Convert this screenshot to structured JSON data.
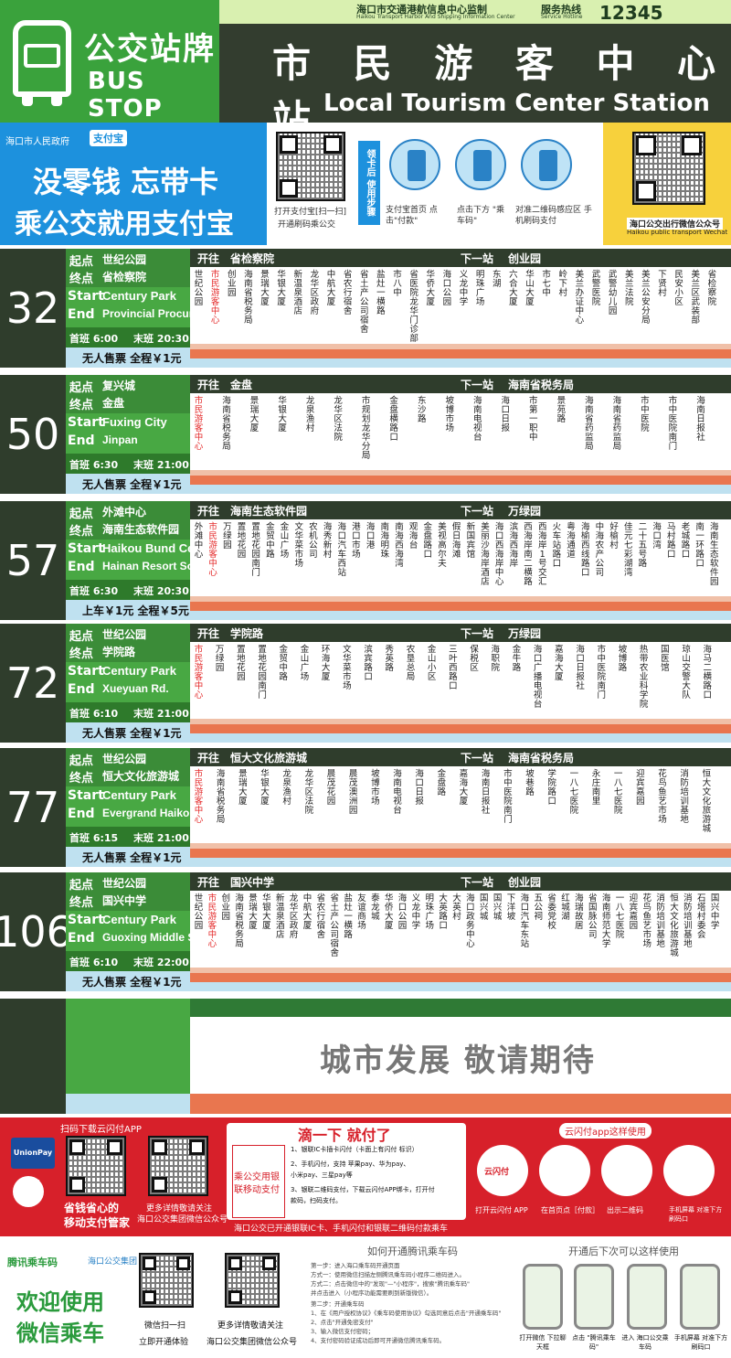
{
  "header": {
    "cn_title": "公交站牌",
    "en_title": "BUS STOP",
    "monitor_cn": "海口市交通港航信息中心监制",
    "monitor_en": "Haikou Transport Harbor And Shipping Information Center",
    "hotline_cn": "服务热线",
    "hotline_en": "Service Hotline",
    "hotline_num": "12345",
    "station_cn": "市 民 游 客 中 心 站",
    "station_en": "Local Tourism Center Station"
  },
  "ad_alipay": {
    "gov": "海口市人民政府",
    "brand": "支付宝",
    "line1": "没零钱  忘带卡",
    "line2": "乘公交就用支付宝",
    "qr_caption1": "打开支付宝[扫一扫]",
    "qr_caption2": "开通刷码乘公交",
    "steps_label": "领卡后 使用步骤",
    "step1": "支付宝首页 点击\"付款\"",
    "step2": "点击下方 \"乘车码\"",
    "step3": "对准二维码感应区 手机刷码支付",
    "wechat_caption": "海口公交出行微信公众号",
    "wechat_caption_en": "Haikou public transport Wechat"
  },
  "routes": [
    {
      "num": "32",
      "start_label": "起点",
      "start": "世纪公园",
      "end_label": "终点",
      "end": "省检察院",
      "start_en_label": "Start",
      "start_en": "Century Park",
      "end_en_label": "End",
      "end_en": "Provincial Procuratorate",
      "first": "首班 6:00",
      "last": "末班 20:30",
      "price": "无人售票 全程￥1元",
      "toward_label": "开往",
      "toward": "省检察院",
      "next_label": "下一站",
      "next": "创业园",
      "stops": [
        "世纪公园",
        "市民游客中心",
        "创业园",
        "海南省税务局",
        "景瑞大厦",
        "华银大厦",
        "新温泉酒店",
        "龙华区政府",
        "中航大厦",
        "省农行宿舍",
        "省土产公司宿舍",
        "盐灶一横路",
        "市八中",
        "省医院龙华门诊部",
        "华侨大厦",
        "海口公园",
        "义龙中学",
        "明珠广场",
        "东湖",
        "六合大厦",
        "华山大厦",
        "市七中",
        "岭下村",
        "美兰办证中心",
        "武警医院",
        "武警幼儿园",
        "美兰法院",
        "美兰公安分局",
        "下贤村",
        "民安小区",
        "美兰区武装部",
        "省检察院"
      ],
      "current": 1
    },
    {
      "num": "50",
      "start_label": "起点",
      "start": "复兴城",
      "end_label": "终点",
      "end": "金盘",
      "start_en_label": "Start",
      "start_en": "Fuxing City",
      "end_en_label": "End",
      "end_en": "Jinpan",
      "first": "首班 6:30",
      "last": "末班 21:00",
      "price": "无人售票 全程￥1元",
      "toward_label": "开往",
      "toward": "金盘",
      "next_label": "下一站",
      "next": "海南省税务局",
      "stops": [
        "市民游客中心",
        "海南省税务局",
        "景瑞大厦",
        "华银大厦",
        "龙泉渔村",
        "龙华区法院",
        "市规划龙华分局",
        "金盘横路口",
        "东沙路",
        "坡博市场",
        "海南电视台",
        "海口日报",
        "市第一职中",
        "景苑路",
        "海南省药监局",
        "海南省药监局",
        "市中医院",
        "市中医院南门",
        "海南日报社"
      ],
      "current": 0
    },
    {
      "num": "57",
      "start_label": "起点",
      "start": "外滩中心",
      "end_label": "终点",
      "end": "海南生态软件园",
      "start_en_label": "Start",
      "start_en": "Haikou Bund Center",
      "end_en_label": "End",
      "end_en": "Hainan Resort Software Community",
      "first": "首班 6:30",
      "last": "末班 20:30",
      "price": "上车￥1元 全程￥5元",
      "toward_label": "开往",
      "toward": "海南生态软件园",
      "next_label": "下一站",
      "next": "万绿园",
      "stops": [
        "外滩中心",
        "市民游客中心",
        "万绿园",
        "置地花园",
        "置地花园南门",
        "金贸中路",
        "金山广场",
        "文华菜市场",
        "农机公司",
        "海秀新村",
        "海口汽车西站",
        "港口市场",
        "海口港",
        "南海明珠",
        "南海西海湾",
        "观海台",
        "金盘路口",
        "美视高尔夫",
        "假日海滩",
        "新国宾馆",
        "美丽沙海岸酒店",
        "海口西海岸中心",
        "滨海西海岸",
        "西海岸南二横路",
        "西海岸1号交汇",
        "火车站路口",
        "粤海通道",
        "海榆西线路口",
        "中海农产公司",
        "好榆村",
        "佳元七彩湖湾",
        "二十五号路",
        "海口湾",
        "马村路口",
        "老城路口",
        "南一环路口",
        "海南生态软件园"
      ],
      "current": 1
    },
    {
      "num": "72",
      "start_label": "起点",
      "start": "世纪公园",
      "end_label": "终点",
      "end": "学院路",
      "start_en_label": "Start",
      "start_en": "Century Park",
      "end_en_label": "End",
      "end_en": "Xueyuan Rd.",
      "first": "首班 6:10",
      "last": "末班 21:00",
      "price": "无人售票 全程￥1元",
      "toward_label": "开往",
      "toward": "学院路",
      "next_label": "下一站",
      "next": "万绿园",
      "stops": [
        "市民游客中心",
        "万绿园",
        "置地花园",
        "置地花园南门",
        "金贸中路",
        "金山广场",
        "环海大厦",
        "文华菜市场",
        "滨宾路口",
        "秀英路",
        "农垦总局",
        "金山小区",
        "三叶西路口",
        "保税区",
        "海职院",
        "金牛路",
        "海口广播电视台",
        "嘉海大厦",
        "海口日报社",
        "市中医院南门",
        "坡博路",
        "热带农业科学院",
        "国医馆",
        "琼山交警大队",
        "海马二横路口"
      ],
      "current": 0
    },
    {
      "num": "77",
      "start_label": "起点",
      "start": "世纪公园",
      "end_label": "终点",
      "end": "恒大文化旅游城",
      "start_en_label": "Start",
      "start_en": "Century Park",
      "end_en_label": "End",
      "end_en": "Evergrand Haikou Cultural City",
      "first": "首班 6:15",
      "last": "末班 21:00",
      "price": "无人售票 全程￥1元",
      "toward_label": "开往",
      "toward": "恒大文化旅游城",
      "next_label": "下一站",
      "next": "海南省税务局",
      "stops": [
        "市民游客中心",
        "海南省税务局",
        "景瑞大厦",
        "华银大厦",
        "龙泉渔村",
        "龙华区法院",
        "晨茂花园",
        "晨茂澳洲园",
        "坡博市场",
        "海南电视台",
        "海口日报",
        "金盘路",
        "嘉海大厦",
        "海南日报社",
        "市中医院南门",
        "坡巷路",
        "学院路口",
        "一八七医院",
        "永庄南里",
        "一八七医院",
        "迎宾嘉园",
        "花鸟鱼艺市场",
        "消防培训基地",
        "恒大文化旅游城"
      ],
      "current": 0
    },
    {
      "num": "106",
      "start_label": "起点",
      "start": "世纪公园",
      "end_label": "终点",
      "end": "国兴中学",
      "start_en_label": "Start",
      "start_en": "Century Park",
      "end_en_label": "End",
      "end_en": "Guoxing Middle School",
      "first": "首班 6:10",
      "last": "末班 22:00",
      "price": "无人售票 全程￥1元",
      "toward_label": "开往",
      "toward": "国兴中学",
      "next_label": "下一站",
      "next": "创业园",
      "stops": [
        "世纪公园",
        "市民游客中心",
        "创业园",
        "海南省税务局",
        "景瑞大厦",
        "华银大厦",
        "新温泉酒店",
        "龙华区政府",
        "中航大厦",
        "省农行宿舍",
        "省土产公司宿舍",
        "盐灶一横路",
        "友谊商场",
        "泰龙城",
        "华侨大厦",
        "海口公园",
        "义龙中学",
        "明珠广场",
        "大英路口",
        "大英村",
        "海口政务中心",
        "国兴城",
        "国兴城",
        "下洋坡",
        "海口汽车东站",
        "五公祠",
        "省委党校",
        "红城湖",
        "海瑞故居",
        "省国脉公司",
        "海南师范大学",
        "一八七医院",
        "迎宾嘉园",
        "花鸟鱼艺市场",
        "消防培训基地",
        "恒大文化旅游城",
        "消防培训基地",
        "石塔村委会",
        "国兴中学"
      ],
      "current": 1
    }
  ],
  "empty_panel": {
    "text": "城市发展    敬请期待"
  },
  "unionpay": {
    "download": "扫码下载云闪付APP",
    "brand": "UnionPay 银联",
    "slogan1": "省钱省心的",
    "slogan2": "移动支付管家",
    "follow": "更多详情敬请关注",
    "follow2": "海口公交集团微信公众号",
    "title": "滴一下 就付了",
    "support1": "乘公交用银",
    "support2": "联移动支付",
    "opt1": "1、银联IC卡插卡闪付（卡面上有闪付 标识）",
    "opt2": "2、手机闪付，支持 苹果pay、华为pay、",
    "opt2b": "小米pay、三星pay等",
    "opt3": "3、银联二维码支付，下载云闪付APP绑卡，打开付",
    "opt3b": "款码，扫码支付。",
    "bottom": "海口公交已开通银联IC卡、手机闪付和银联二维码付款乘车",
    "how": "云闪付app这样使用",
    "s1": "打开云闪付 APP",
    "s2": "在首页点［付款］",
    "s3": "出示二维码",
    "s4": "手机屏幕 对准下方刷码口",
    "app": "云闪付"
  },
  "tencent": {
    "brand": "腾讯乘车码",
    "group": "海口公交集团",
    "welcome1": "欢迎使用",
    "welcome2": "微信乘车",
    "scan": "微信扫一扫",
    "scan2": "立即开通体验",
    "follow": "更多详情敬请关注",
    "follow2": "海口公交集团微信公众号",
    "how": "如何开通腾讯乘车码",
    "step1": "第一步：进入海口乘车码开通页面",
    "way1": "方式一：使用微信扫描左侧腾讯乘车码小程序二维码进入。",
    "way2": "方式二：点击微信中的\"发现\"—\"小程序\"，搜索\"腾讯乘车码\"",
    "way2b": "并点击进入（小程序功能需要刷到新版微信）。",
    "step2": "第二步：开通乘车码",
    "step2a": "1、在《用户授权协议》《乘车码使用协议》勾选同意后点击\"开通乘车码\"",
    "step2b": "2、点击\"开通免密支付\"",
    "step2c": "3、输入微信支付密码；",
    "step2d": "4、支付密码验证成功后即可开通微信腾讯乘车码。",
    "after": "开通后下次可以这样使用",
    "u1": "打开微信 下拉聊天框",
    "u2": "点击 \"腾讯乘车码\"",
    "u3": "进入 海口公交乘车码",
    "u4": "手机屏幕 对准下方刷码口"
  },
  "colors": {
    "dark": "#2f3d2c",
    "green": "#48a843",
    "red": "#d7202a",
    "blue": "#1d91dd",
    "current_stop": "#e42a2a"
  }
}
